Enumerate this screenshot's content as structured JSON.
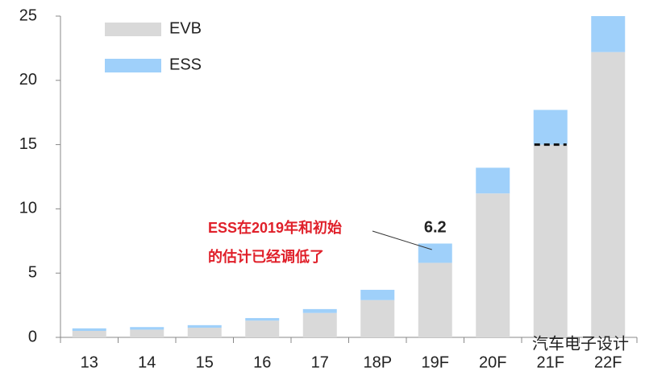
{
  "chart_data": {
    "type": "stacked_bar",
    "categories": [
      "13",
      "14",
      "15",
      "16",
      "17",
      "18P",
      "19F",
      "20F",
      "21F",
      "22F"
    ],
    "series": [
      {
        "name": "EVB",
        "color": "#d9d9d9",
        "values": [
          0.5,
          0.6,
          0.75,
          1.3,
          1.9,
          2.9,
          5.8,
          11.2,
          15.0,
          22.2
        ]
      },
      {
        "name": "ESS",
        "color": "#9fd0fa",
        "values": [
          0.2,
          0.2,
          0.2,
          0.2,
          0.3,
          0.8,
          1.5,
          2.0,
          2.7,
          2.8
        ]
      }
    ],
    "ylim": [
      0,
      25
    ],
    "yticks": [
      0,
      5,
      10,
      15,
      20,
      25
    ],
    "annotation_value": 6.2,
    "annotation_lines": [
      "ESS在2019年和初始",
      "的估计已经调低了"
    ],
    "marker_value": 15,
    "watermark": "汽车电子设计"
  }
}
